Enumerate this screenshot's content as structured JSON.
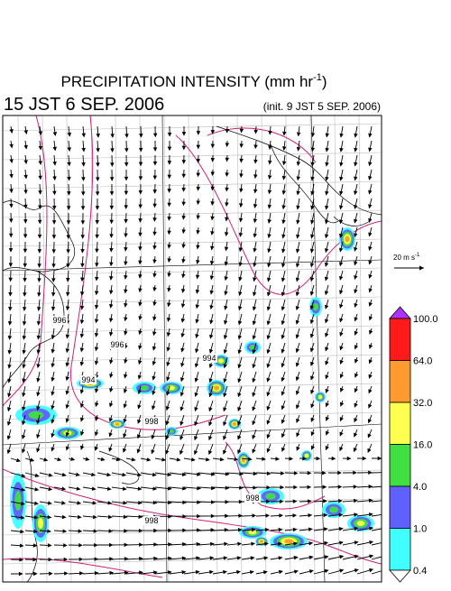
{
  "title": {
    "main": "PRECIPITATION INTENSITY (mm hr",
    "sup": "-1",
    "end": ")"
  },
  "valid_time": "15 JST 6 SEP. 2006",
  "init_time": "(init. 9 JST 5 SEP. 2006)",
  "reference_vector": {
    "main": "20 m s",
    "sup": "-1"
  },
  "colorbar": {
    "levels": [
      "100.0",
      "64.0",
      "32.0",
      "16.0",
      "4.0",
      "1.0",
      "0.4"
    ],
    "colors": [
      "#ff1a1a",
      "#ff9a30",
      "#ffff50",
      "#40e040",
      "#6060ff",
      "#40ffff"
    ],
    "over_color": "#b030ff",
    "under_color": "#ffffff"
  },
  "contour_labels": [
    "996",
    "996",
    "994",
    "998",
    "994",
    "998",
    "998"
  ]
}
